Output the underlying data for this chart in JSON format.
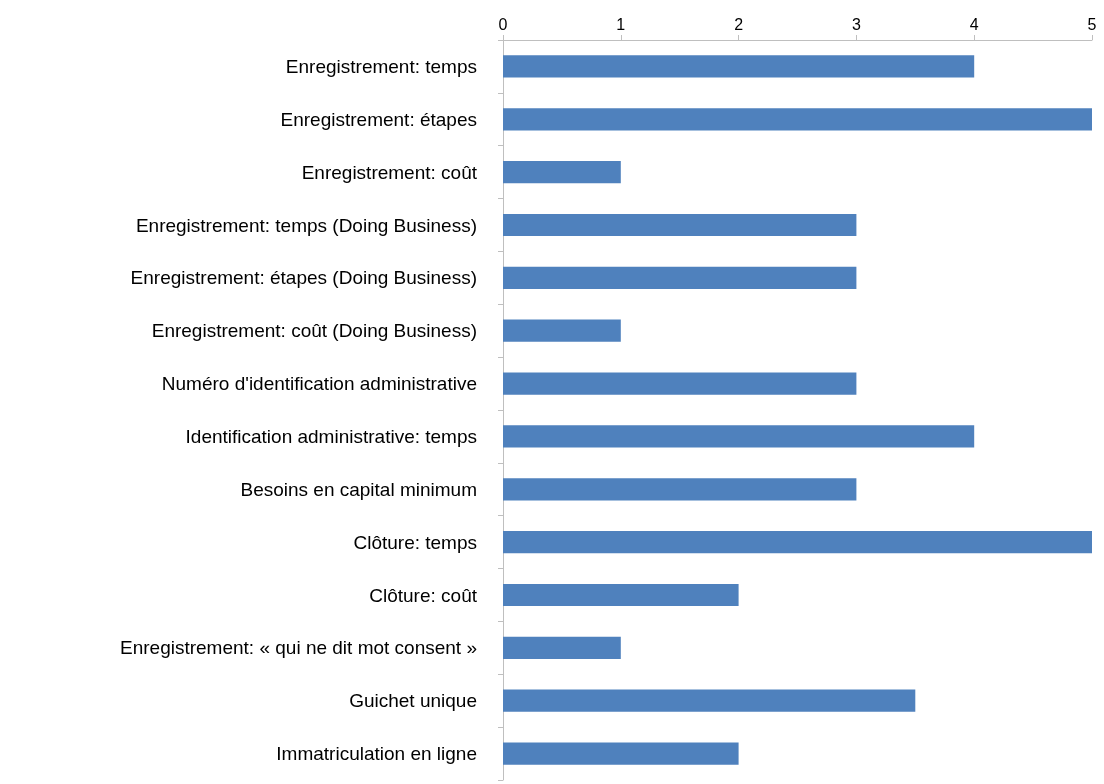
{
  "chart_data": {
    "type": "bar",
    "orientation": "horizontal",
    "categories": [
      "Enregistrement: temps",
      "Enregistrement: étapes",
      "Enregistrement: coût",
      "Enregistrement: temps (Doing Business)",
      "Enregistrement: étapes (Doing Business)",
      "Enregistrement: coût (Doing Business)",
      "Numéro d'identification administrative",
      "Identification administrative: temps",
      "Besoins en capital minimum",
      "Clôture: temps",
      "Clôture: coût",
      "Enregistrement: « qui ne dit mot consent »",
      "Guichet unique",
      "Immatriculation en ligne"
    ],
    "values": [
      4,
      5,
      1,
      3,
      3,
      1,
      3,
      4,
      3,
      5,
      2,
      1,
      3.5,
      2
    ],
    "color": "#4f81bd",
    "xlim": [
      0,
      5
    ],
    "xticks": [
      0,
      1,
      2,
      3,
      4,
      5
    ],
    "grid": false
  }
}
